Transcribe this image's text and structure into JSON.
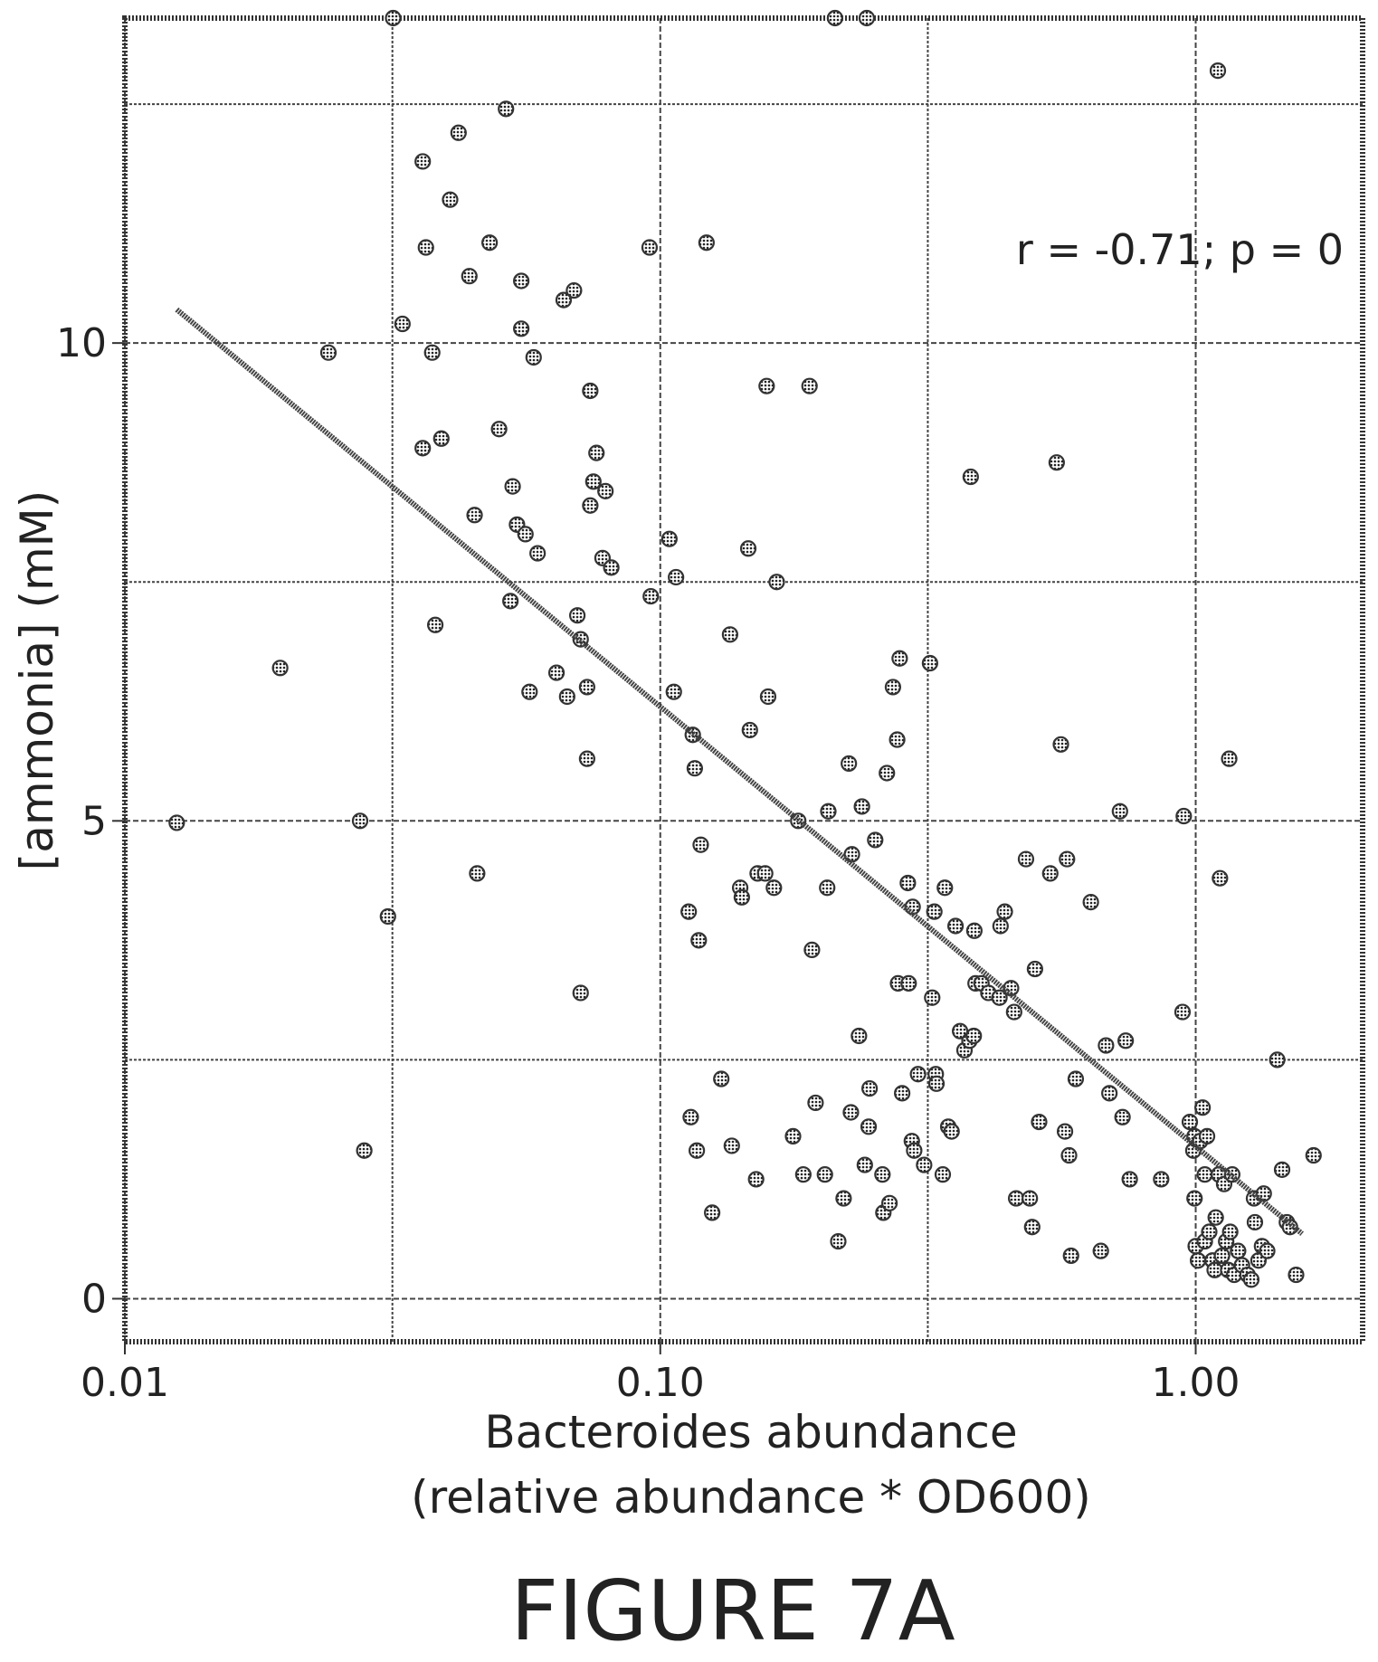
{
  "chart_data": {
    "type": "scatter",
    "xlabel_line1": "Bacteroides abundance",
    "xlabel_line2": "(relative abundance * OD600)",
    "ylabel": "[ammonia] (mM)",
    "annotation": "r = -0.71; p = 0",
    "caption": "FIGURE 7A",
    "x_scale": "log",
    "xlim": [
      0.01,
      2.05
    ],
    "ylim": [
      -0.45,
      13.4
    ],
    "x_ticks": [
      {
        "value": 0.01,
        "label": "0.01"
      },
      {
        "value": 0.1,
        "label": "0.10"
      },
      {
        "value": 1.0,
        "label": "1.00"
      }
    ],
    "y_ticks": [
      {
        "value": 0,
        "label": "0"
      },
      {
        "value": 5,
        "label": "5"
      },
      {
        "value": 10,
        "label": "10"
      }
    ],
    "x_gridlines": [
      0.01,
      0.0316,
      0.1,
      0.316,
      1.0
    ],
    "y_gridlines": [
      0,
      2.5,
      5,
      7.5,
      10,
      12.5
    ],
    "grid": true,
    "marker_color": "#333333",
    "fit_line": {
      "x": [
        0.0125,
        1.58
      ],
      "y": [
        10.35,
        0.68
      ]
    },
    "points": [
      [
        0.0125,
        4.98
      ],
      [
        0.0195,
        6.6
      ],
      [
        0.024,
        9.9
      ],
      [
        0.0275,
        5.0
      ],
      [
        0.028,
        1.55
      ],
      [
        0.031,
        4.0
      ],
      [
        0.0317,
        13.4
      ],
      [
        0.033,
        10.2
      ],
      [
        0.036,
        11.9
      ],
      [
        0.0365,
        11.0
      ],
      [
        0.036,
        8.9
      ],
      [
        0.0375,
        9.9
      ],
      [
        0.038,
        7.05
      ],
      [
        0.039,
        9.0
      ],
      [
        0.0405,
        11.5
      ],
      [
        0.042,
        12.2
      ],
      [
        0.044,
        10.7
      ],
      [
        0.045,
        8.2
      ],
      [
        0.0455,
        4.45
      ],
      [
        0.048,
        11.05
      ],
      [
        0.05,
        9.1
      ],
      [
        0.0515,
        12.45
      ],
      [
        0.0525,
        7.3
      ],
      [
        0.053,
        8.5
      ],
      [
        0.054,
        8.1
      ],
      [
        0.055,
        10.65
      ],
      [
        0.055,
        10.15
      ],
      [
        0.056,
        8.0
      ],
      [
        0.057,
        6.35
      ],
      [
        0.058,
        9.85
      ],
      [
        0.059,
        7.8
      ],
      [
        0.064,
        6.55
      ],
      [
        0.066,
        10.45
      ],
      [
        0.067,
        6.3
      ],
      [
        0.069,
        10.55
      ],
      [
        0.07,
        7.15
      ],
      [
        0.071,
        6.9
      ],
      [
        0.071,
        3.2
      ],
      [
        0.073,
        5.65
      ],
      [
        0.073,
        6.4
      ],
      [
        0.074,
        9.5
      ],
      [
        0.074,
        8.3
      ],
      [
        0.075,
        8.55
      ],
      [
        0.076,
        8.85
      ],
      [
        0.078,
        7.75
      ],
      [
        0.079,
        8.45
      ],
      [
        0.081,
        7.65
      ],
      [
        0.0955,
        11.0
      ],
      [
        0.096,
        7.35
      ],
      [
        0.104,
        7.95
      ],
      [
        0.106,
        6.35
      ],
      [
        0.107,
        7.55
      ],
      [
        0.113,
        4.05
      ],
      [
        0.114,
        1.9
      ],
      [
        0.115,
        5.9
      ],
      [
        0.116,
        5.55
      ],
      [
        0.117,
        1.55
      ],
      [
        0.118,
        3.75
      ],
      [
        0.119,
        4.75
      ],
      [
        0.122,
        11.05
      ],
      [
        0.125,
        0.9
      ],
      [
        0.13,
        2.3
      ],
      [
        0.135,
        6.95
      ],
      [
        0.136,
        1.6
      ],
      [
        0.141,
        4.3
      ],
      [
        0.142,
        4.2
      ],
      [
        0.146,
        7.85
      ],
      [
        0.147,
        5.95
      ],
      [
        0.151,
        1.25
      ],
      [
        0.152,
        4.45
      ],
      [
        0.157,
        4.45
      ],
      [
        0.158,
        9.55
      ],
      [
        0.159,
        6.3
      ],
      [
        0.163,
        4.3
      ],
      [
        0.165,
        7.5
      ],
      [
        0.177,
        1.7
      ],
      [
        0.181,
        5.0
      ],
      [
        0.185,
        1.3
      ],
      [
        0.19,
        9.55
      ],
      [
        0.192,
        3.65
      ],
      [
        0.195,
        2.05
      ],
      [
        0.203,
        1.3
      ],
      [
        0.205,
        4.3
      ],
      [
        0.206,
        5.1
      ],
      [
        0.212,
        13.4
      ],
      [
        0.215,
        0.6
      ],
      [
        0.22,
        1.05
      ],
      [
        0.225,
        5.6
      ],
      [
        0.227,
        1.95
      ],
      [
        0.228,
        4.65
      ],
      [
        0.235,
        2.75
      ],
      [
        0.238,
        5.15
      ],
      [
        0.241,
        1.4
      ],
      [
        0.243,
        13.4
      ],
      [
        0.245,
        1.8
      ],
      [
        0.246,
        2.2
      ],
      [
        0.252,
        4.8
      ],
      [
        0.26,
        1.3
      ],
      [
        0.261,
        0.9
      ],
      [
        0.265,
        5.5
      ],
      [
        0.268,
        1.0
      ],
      [
        0.272,
        6.4
      ],
      [
        0.277,
        5.85
      ],
      [
        0.278,
        3.3
      ],
      [
        0.28,
        6.7
      ],
      [
        0.283,
        2.15
      ],
      [
        0.29,
        4.35
      ],
      [
        0.291,
        3.3
      ],
      [
        0.295,
        1.65
      ],
      [
        0.296,
        4.1
      ],
      [
        0.298,
        1.55
      ],
      [
        0.303,
        2.35
      ],
      [
        0.311,
        1.4
      ],
      [
        0.319,
        6.65
      ],
      [
        0.322,
        3.15
      ],
      [
        0.325,
        4.05
      ],
      [
        0.327,
        2.35
      ],
      [
        0.328,
        2.25
      ],
      [
        0.337,
        1.3
      ],
      [
        0.34,
        4.3
      ],
      [
        0.345,
        1.8
      ],
      [
        0.35,
        1.75
      ],
      [
        0.356,
        3.9
      ],
      [
        0.363,
        2.8
      ],
      [
        0.37,
        2.6
      ],
      [
        0.378,
        2.7
      ],
      [
        0.38,
        8.6
      ],
      [
        0.385,
        2.75
      ],
      [
        0.386,
        3.85
      ],
      [
        0.388,
        3.3
      ],
      [
        0.398,
        3.3
      ],
      [
        0.41,
        3.2
      ],
      [
        0.43,
        3.15
      ],
      [
        0.432,
        3.9
      ],
      [
        0.44,
        4.05
      ],
      [
        0.452,
        3.25
      ],
      [
        0.458,
        3.0
      ],
      [
        0.462,
        1.05
      ],
      [
        0.482,
        4.6
      ],
      [
        0.49,
        1.05
      ],
      [
        0.495,
        0.75
      ],
      [
        0.501,
        3.45
      ],
      [
        0.51,
        1.85
      ],
      [
        0.535,
        4.45
      ],
      [
        0.55,
        8.75
      ],
      [
        0.56,
        5.8
      ],
      [
        0.57,
        1.75
      ],
      [
        0.575,
        4.6
      ],
      [
        0.58,
        1.5
      ],
      [
        0.585,
        0.45
      ],
      [
        0.597,
        2.3
      ],
      [
        0.637,
        4.15
      ],
      [
        0.665,
        0.5
      ],
      [
        0.68,
        2.65
      ],
      [
        0.69,
        2.15
      ],
      [
        0.722,
        5.1
      ],
      [
        0.73,
        1.9
      ],
      [
        0.74,
        2.7
      ],
      [
        0.753,
        1.25
      ],
      [
        0.862,
        1.25
      ],
      [
        0.945,
        3.0
      ],
      [
        0.95,
        5.05
      ],
      [
        0.975,
        1.85
      ],
      [
        0.99,
        1.55
      ],
      [
        0.995,
        1.7
      ],
      [
        0.995,
        1.05
      ],
      [
        1.0,
        0.55
      ],
      [
        1.01,
        0.4
      ],
      [
        1.02,
        1.65
      ],
      [
        1.03,
        2.0
      ],
      [
        1.04,
        1.3
      ],
      [
        1.04,
        0.6
      ],
      [
        1.05,
        1.7
      ],
      [
        1.06,
        0.7
      ],
      [
        1.075,
        0.4
      ],
      [
        1.085,
        0.3
      ],
      [
        1.09,
        0.85
      ],
      [
        1.1,
        12.85
      ],
      [
        1.105,
        1.3
      ],
      [
        1.11,
        4.4
      ],
      [
        1.12,
        0.45
      ],
      [
        1.13,
        1.2
      ],
      [
        1.14,
        0.6
      ],
      [
        1.15,
        0.3
      ],
      [
        1.155,
        5.65
      ],
      [
        1.16,
        0.7
      ],
      [
        1.17,
        1.3
      ],
      [
        1.18,
        0.25
      ],
      [
        1.2,
        0.5
      ],
      [
        1.22,
        0.35
      ],
      [
        1.25,
        0.25
      ],
      [
        1.27,
        0.2
      ],
      [
        1.285,
        1.05
      ],
      [
        1.29,
        0.8
      ],
      [
        1.31,
        0.4
      ],
      [
        1.33,
        0.55
      ],
      [
        1.34,
        1.1
      ],
      [
        1.36,
        0.5
      ],
      [
        1.42,
        2.5
      ],
      [
        1.45,
        1.35
      ],
      [
        1.48,
        0.8
      ],
      [
        1.5,
        0.75
      ],
      [
        1.54,
        0.25
      ],
      [
        1.66,
        1.5
      ]
    ]
  }
}
